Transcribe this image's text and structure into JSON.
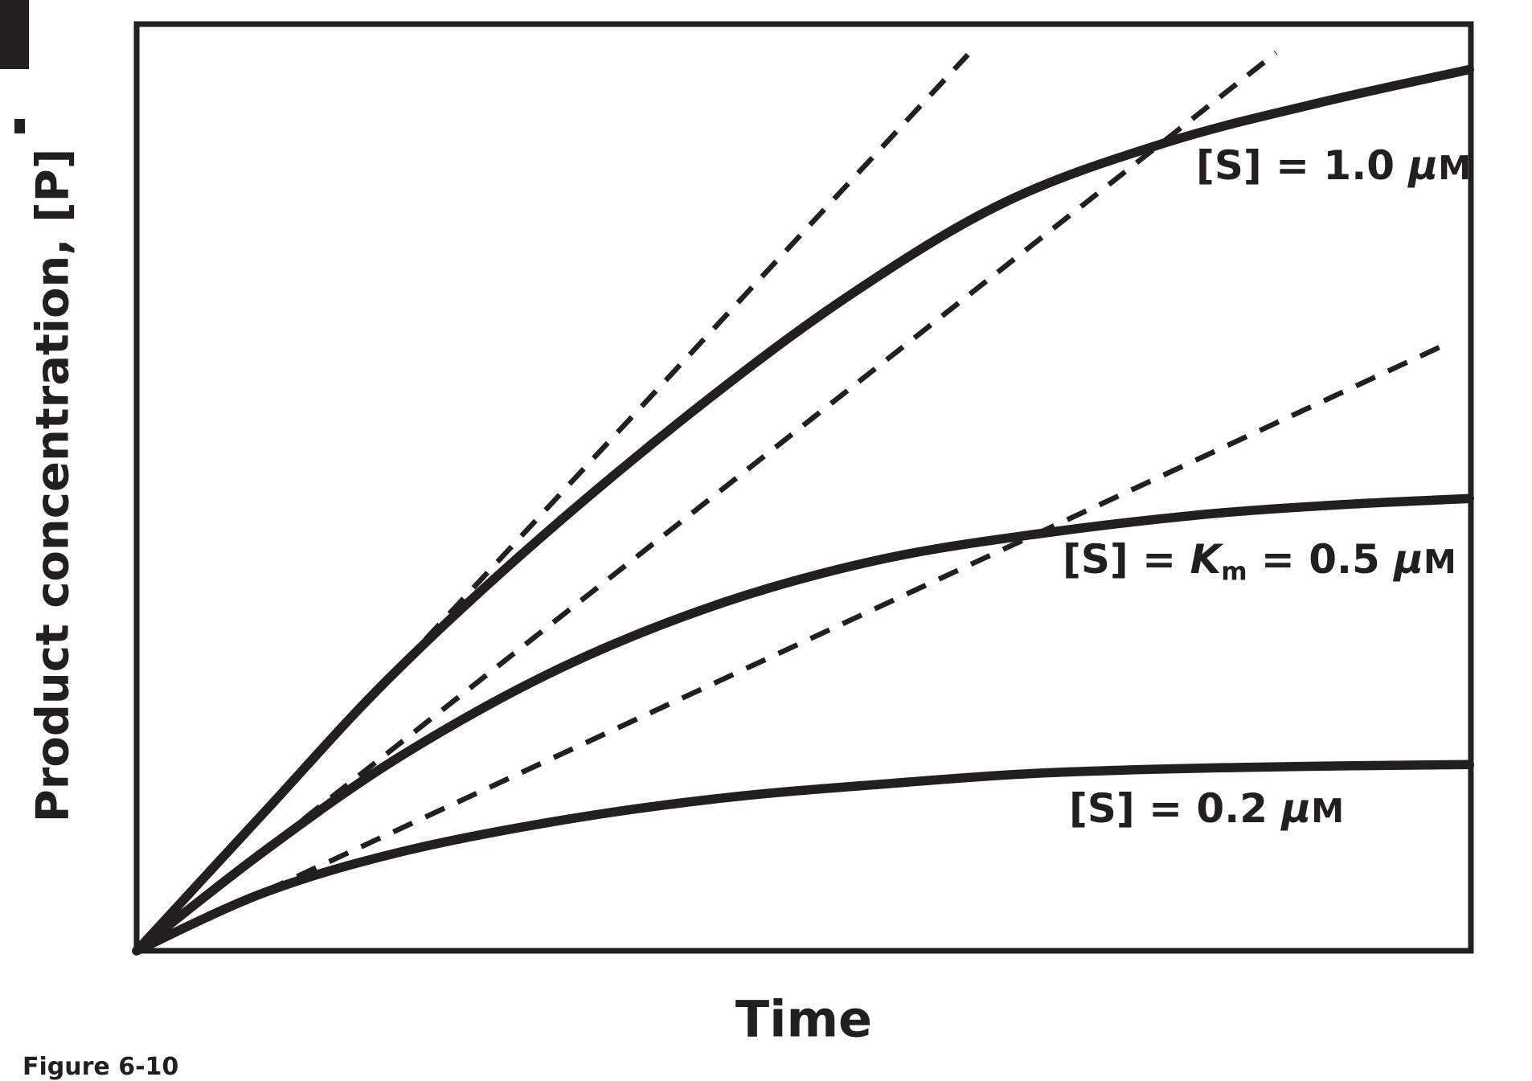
{
  "figure": {
    "caption": "Figure 6-10"
  },
  "axes": {
    "y_label": "Product concentration, [P]",
    "x_label": "Time"
  },
  "curve_labels": {
    "top": {
      "prefix": "[S] = 1.0 ",
      "mu": "μ",
      "unit": "M"
    },
    "middle": {
      "prefix": "[S] = ",
      "k": "K",
      "k_sub": "m",
      "mid": " = 0.5 ",
      "mu": "μ",
      "unit": "M"
    },
    "bottom": {
      "prefix": "[S] = 0.2 ",
      "mu": "μ",
      "unit": "M"
    }
  },
  "colors": {
    "ink": "#231f20",
    "background": "#ffffff"
  },
  "chart_data": {
    "type": "line",
    "title": "",
    "xlabel": "Time",
    "ylabel": "Product concentration, [P]",
    "axes_numeric": false,
    "grid": false,
    "legend": false,
    "x_range_norm": [
      0,
      1
    ],
    "y_range_norm": [
      0,
      1
    ],
    "annotations": [
      "[S] = 1.0 μM",
      "[S] = Km = 0.5 μM",
      "[S] = 0.2 μM"
    ],
    "series": [
      {
        "name": "progress curve [S] = 1.0 μM",
        "slug": "curve-s-1_0",
        "style": "solid",
        "points_norm": [
          [
            0,
            0
          ],
          [
            0.096,
            0.15
          ],
          [
            0.187,
            0.291
          ],
          [
            0.295,
            0.436
          ],
          [
            0.422,
            0.588
          ],
          [
            0.536,
            0.709
          ],
          [
            0.651,
            0.808
          ],
          [
            0.771,
            0.872
          ],
          [
            0.886,
            0.915
          ],
          [
            0.999,
            0.951
          ]
        ]
      },
      {
        "name": "progress curve [S] = Km = 0.5 μM",
        "slug": "curve-s-0_5",
        "style": "solid",
        "points_norm": [
          [
            0,
            0
          ],
          [
            0.096,
            0.108
          ],
          [
            0.199,
            0.211
          ],
          [
            0.319,
            0.306
          ],
          [
            0.44,
            0.376
          ],
          [
            0.56,
            0.423
          ],
          [
            0.681,
            0.451
          ],
          [
            0.801,
            0.471
          ],
          [
            0.898,
            0.481
          ],
          [
            0.999,
            0.488
          ]
        ]
      },
      {
        "name": "progress curve [S] = 0.2 μM",
        "slug": "curve-s-0_2",
        "style": "solid",
        "points_norm": [
          [
            0,
            0
          ],
          [
            0.096,
            0.063
          ],
          [
            0.199,
            0.107
          ],
          [
            0.319,
            0.141
          ],
          [
            0.44,
            0.165
          ],
          [
            0.56,
            0.18
          ],
          [
            0.681,
            0.192
          ],
          [
            0.831,
            0.198
          ],
          [
            0.999,
            0.201
          ]
        ]
      },
      {
        "name": "initial-velocity tangent for [S] = 1.0 μM",
        "slug": "tangent-s-1_0",
        "style": "dashed",
        "points_norm": [
          [
            0,
            0
          ],
          [
            0.623,
            0.967
          ]
        ]
      },
      {
        "name": "initial-velocity tangent for [S] = 0.5 μM",
        "slug": "tangent-s-0_5",
        "style": "dashed",
        "points_norm": [
          [
            0,
            0
          ],
          [
            0.854,
            0.969
          ]
        ]
      },
      {
        "name": "initial-velocity tangent for [S] = 0.2 μM",
        "slug": "tangent-s-0_2",
        "style": "dashed",
        "points_norm": [
          [
            0,
            0
          ],
          [
            0.982,
            0.655
          ]
        ]
      }
    ]
  }
}
